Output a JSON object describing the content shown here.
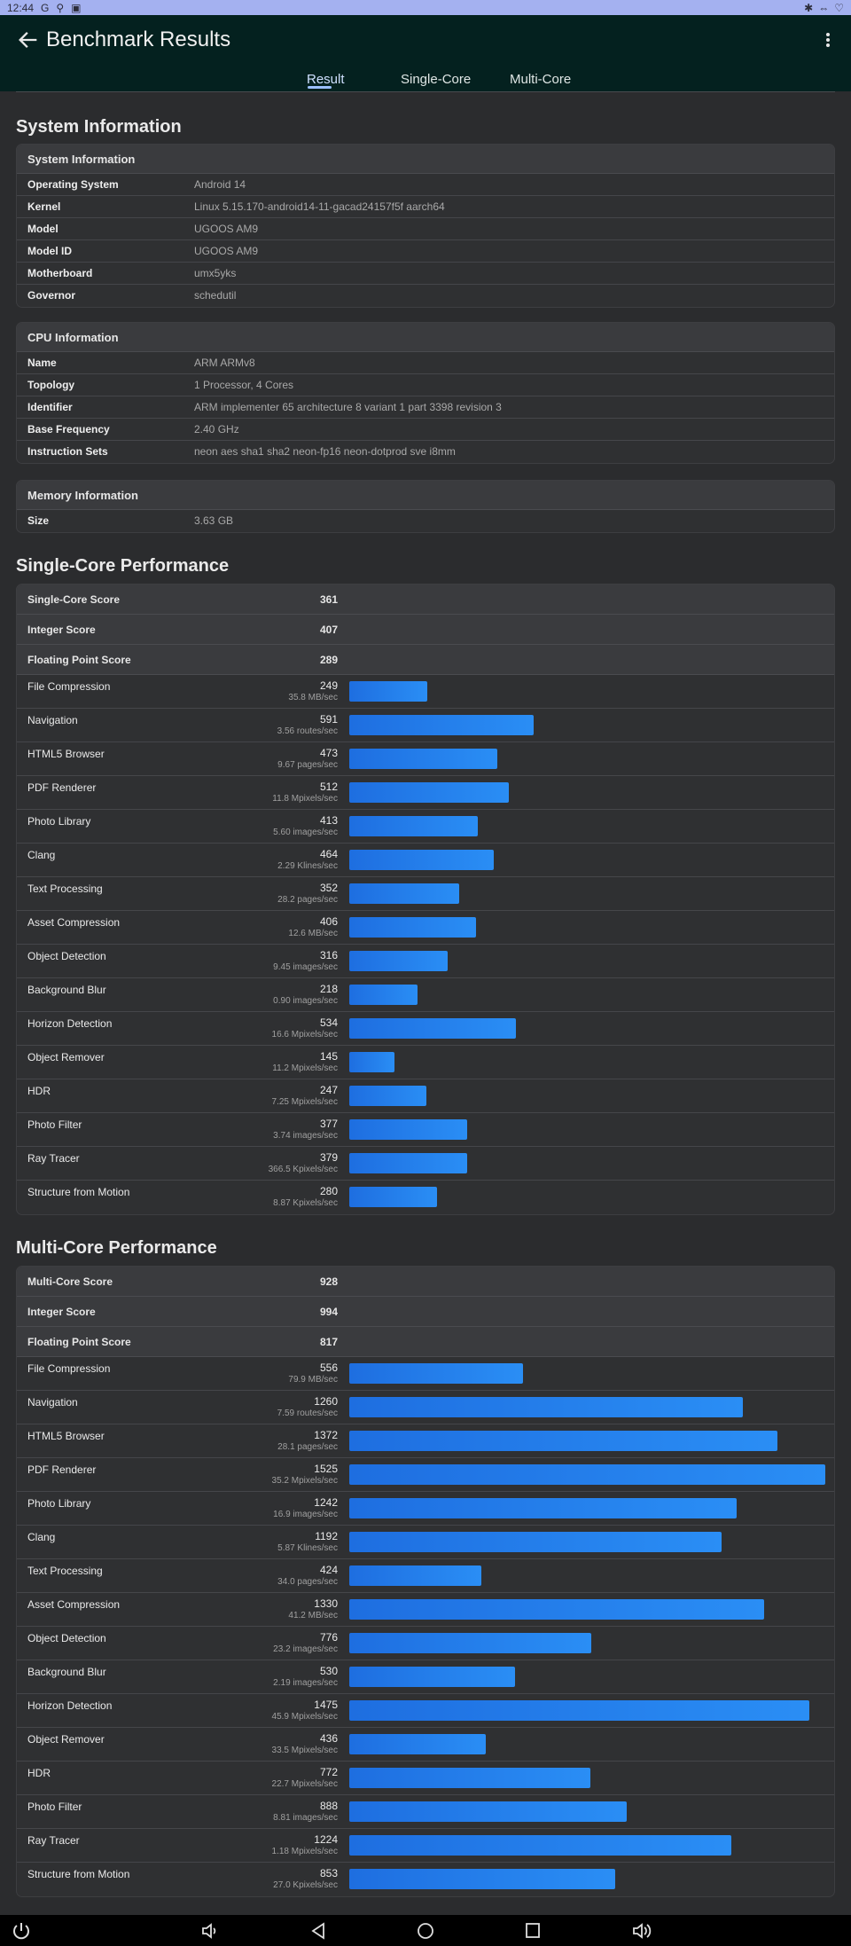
{
  "status_bar": {
    "time": "12:44",
    "right_icons": [
      "bluetooth-icon",
      "wifi-icon",
      "battery-icon"
    ]
  },
  "header": {
    "title": "Benchmark Results"
  },
  "tabs": [
    {
      "label": "Result",
      "active": true
    },
    {
      "label": "Single-Core",
      "active": false
    },
    {
      "label": "Multi-Core",
      "active": false
    }
  ],
  "system_section": {
    "title": "System Information"
  },
  "system_info": {
    "heading": "System Information",
    "rows": [
      {
        "label": "Operating System",
        "value": "Android 14"
      },
      {
        "label": "Kernel",
        "value": "Linux 5.15.170-android14-11-gacad24157f5f aarch64"
      },
      {
        "label": "Model",
        "value": "UGOOS AM9"
      },
      {
        "label": "Model ID",
        "value": "UGOOS AM9"
      },
      {
        "label": "Motherboard",
        "value": "umx5yks"
      },
      {
        "label": "Governor",
        "value": "schedutil"
      }
    ]
  },
  "cpu_info": {
    "heading": "CPU Information",
    "rows": [
      {
        "label": "Name",
        "value": "ARM ARMv8"
      },
      {
        "label": "Topology",
        "value": "1 Processor, 4 Cores"
      },
      {
        "label": "Identifier",
        "value": "ARM implementer 65 architecture 8 variant 1 part 3398 revision 3"
      },
      {
        "label": "Base Frequency",
        "value": "2.40 GHz"
      },
      {
        "label": "Instruction Sets",
        "value": "neon aes sha1 sha2 neon-fp16 neon-dotprod sve i8mm"
      }
    ]
  },
  "memory_info": {
    "heading": "Memory Information",
    "rows": [
      {
        "label": "Size",
        "value": "3.63 GB"
      }
    ]
  },
  "bar_scale_max": 1525,
  "single_core": {
    "title": "Single-Core Performance",
    "scores": [
      {
        "label": "Single-Core Score",
        "value": "361"
      },
      {
        "label": "Integer Score",
        "value": "407"
      },
      {
        "label": "Floating Point Score",
        "value": "289"
      }
    ],
    "benchmarks": [
      {
        "name": "File Compression",
        "score": 249,
        "rate": "35.8 MB/sec"
      },
      {
        "name": "Navigation",
        "score": 591,
        "rate": "3.56 routes/sec"
      },
      {
        "name": "HTML5 Browser",
        "score": 473,
        "rate": "9.67 pages/sec"
      },
      {
        "name": "PDF Renderer",
        "score": 512,
        "rate": "11.8 Mpixels/sec"
      },
      {
        "name": "Photo Library",
        "score": 413,
        "rate": "5.60 images/sec"
      },
      {
        "name": "Clang",
        "score": 464,
        "rate": "2.29 Klines/sec"
      },
      {
        "name": "Text Processing",
        "score": 352,
        "rate": "28.2 pages/sec"
      },
      {
        "name": "Asset Compression",
        "score": 406,
        "rate": "12.6 MB/sec"
      },
      {
        "name": "Object Detection",
        "score": 316,
        "rate": "9.45 images/sec"
      },
      {
        "name": "Background Blur",
        "score": 218,
        "rate": "0.90 images/sec"
      },
      {
        "name": "Horizon Detection",
        "score": 534,
        "rate": "16.6 Mpixels/sec"
      },
      {
        "name": "Object Remover",
        "score": 145,
        "rate": "11.2 Mpixels/sec"
      },
      {
        "name": "HDR",
        "score": 247,
        "rate": "7.25 Mpixels/sec"
      },
      {
        "name": "Photo Filter",
        "score": 377,
        "rate": "3.74 images/sec"
      },
      {
        "name": "Ray Tracer",
        "score": 379,
        "rate": "366.5 Kpixels/sec"
      },
      {
        "name": "Structure from Motion",
        "score": 280,
        "rate": "8.87 Kpixels/sec"
      }
    ]
  },
  "multi_core": {
    "title": "Multi-Core Performance",
    "scores": [
      {
        "label": "Multi-Core Score",
        "value": "928"
      },
      {
        "label": "Integer Score",
        "value": "994"
      },
      {
        "label": "Floating Point Score",
        "value": "817"
      }
    ],
    "benchmarks": [
      {
        "name": "File Compression",
        "score": 556,
        "rate": "79.9 MB/sec"
      },
      {
        "name": "Navigation",
        "score": 1260,
        "rate": "7.59 routes/sec"
      },
      {
        "name": "HTML5 Browser",
        "score": 1372,
        "rate": "28.1 pages/sec"
      },
      {
        "name": "PDF Renderer",
        "score": 1525,
        "rate": "35.2 Mpixels/sec"
      },
      {
        "name": "Photo Library",
        "score": 1242,
        "rate": "16.9 images/sec"
      },
      {
        "name": "Clang",
        "score": 1192,
        "rate": "5.87 Klines/sec"
      },
      {
        "name": "Text Processing",
        "score": 424,
        "rate": "34.0 pages/sec"
      },
      {
        "name": "Asset Compression",
        "score": 1330,
        "rate": "41.2 MB/sec"
      },
      {
        "name": "Object Detection",
        "score": 776,
        "rate": "23.2 images/sec"
      },
      {
        "name": "Background Blur",
        "score": 530,
        "rate": "2.19 images/sec"
      },
      {
        "name": "Horizon Detection",
        "score": 1475,
        "rate": "45.9 Mpixels/sec"
      },
      {
        "name": "Object Remover",
        "score": 436,
        "rate": "33.5 Mpixels/sec"
      },
      {
        "name": "HDR",
        "score": 772,
        "rate": "22.7 Mpixels/sec"
      },
      {
        "name": "Photo Filter",
        "score": 888,
        "rate": "8.81 images/sec"
      },
      {
        "name": "Ray Tracer",
        "score": 1224,
        "rate": "1.18 Mpixels/sec"
      },
      {
        "name": "Structure from Motion",
        "score": 853,
        "rate": "27.0 Kpixels/sec"
      }
    ]
  },
  "colors": {
    "bar": "#2a8ef5",
    "app_bar": "#04211f",
    "background": "#2b2c2e"
  }
}
